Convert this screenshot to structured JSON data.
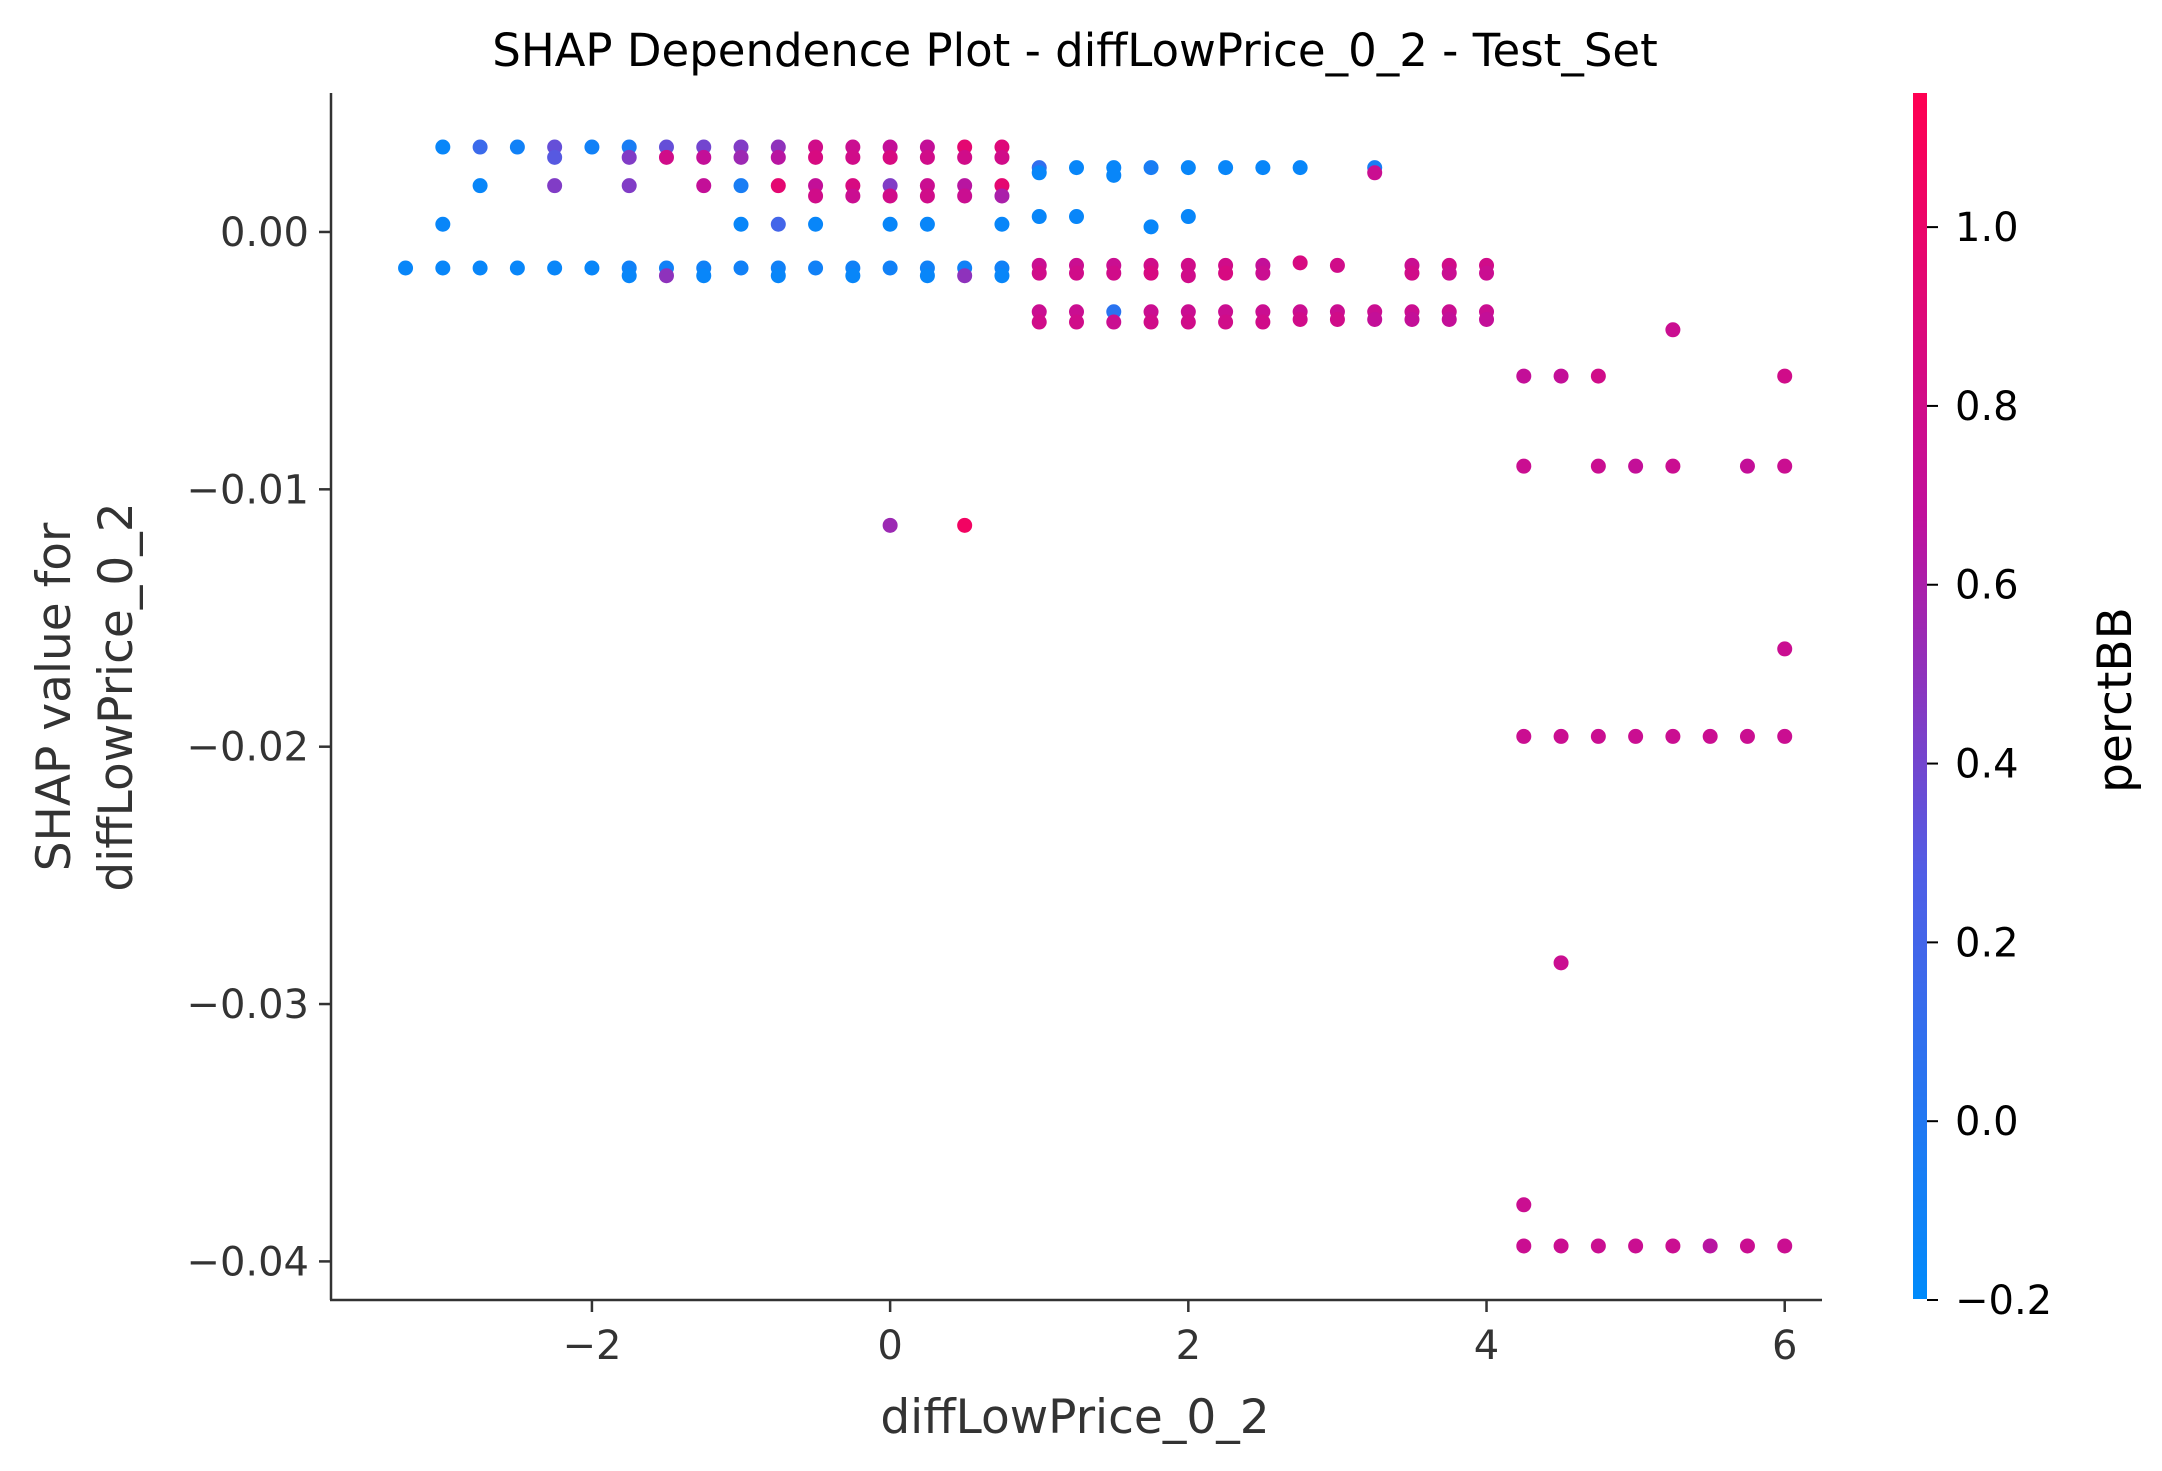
{
  "chart_data": {
    "type": "scatter",
    "title": "SHAP Dependence Plot - diffLowPrice_0_2 - Test_Set",
    "xlabel": "diffLowPrice_0_2",
    "ylabel_lines": [
      "SHAP value for",
      "diffLowPrice_0_2"
    ],
    "xlim": [
      -3.75,
      6.25
    ],
    "ylim": [
      -0.0415,
      0.0054
    ],
    "x_ticks": [
      -2,
      0,
      2,
      4,
      6
    ],
    "x_tick_labels": [
      "−2",
      "0",
      "2",
      "4",
      "6"
    ],
    "y_ticks": [
      0.0,
      -0.01,
      -0.02,
      -0.03,
      -0.04
    ],
    "y_tick_labels": [
      "0.00",
      "−0.01",
      "−0.02",
      "−0.03",
      "−0.04"
    ],
    "colorbar": {
      "label": "perctBB",
      "range": [
        -0.2,
        1.15
      ],
      "ticks": [
        1.0,
        0.8,
        0.6,
        0.4,
        0.2,
        0.0,
        -0.2
      ],
      "tick_labels": [
        "1.0",
        "0.8",
        "0.6",
        "0.4",
        "0.2",
        "0.0",
        "−0.2"
      ],
      "color_low": "#008bfb",
      "color_high": "#ff0052"
    },
    "points": [
      [
        -3.25,
        -0.0014,
        -0.15
      ],
      [
        -3.0,
        0.0033,
        -0.15
      ],
      [
        -3.0,
        0.0003,
        -0.15
      ],
      [
        -3.0,
        -0.0014,
        -0.15
      ],
      [
        -2.75,
        0.0033,
        0.15
      ],
      [
        -2.75,
        0.0018,
        -0.15
      ],
      [
        -2.75,
        -0.0014,
        -0.15
      ],
      [
        -2.5,
        0.0033,
        -0.1
      ],
      [
        -2.5,
        -0.0014,
        -0.15
      ],
      [
        -2.25,
        0.0033,
        0.35
      ],
      [
        -2.25,
        0.0029,
        0.3
      ],
      [
        -2.25,
        0.0018,
        0.45
      ],
      [
        -2.25,
        -0.0014,
        -0.15
      ],
      [
        -2.0,
        0.0033,
        -0.1
      ],
      [
        -2.0,
        -0.0014,
        -0.15
      ],
      [
        -1.75,
        0.0033,
        -0.05
      ],
      [
        -1.75,
        0.0029,
        0.45
      ],
      [
        -1.75,
        0.0018,
        0.45
      ],
      [
        -1.75,
        -0.0014,
        -0.1
      ],
      [
        -1.75,
        -0.0017,
        -0.15
      ],
      [
        -1.5,
        0.0033,
        0.35
      ],
      [
        -1.5,
        0.0029,
        0.8
      ],
      [
        -1.5,
        -0.0014,
        -0.1
      ],
      [
        -1.5,
        -0.0017,
        0.5
      ],
      [
        -1.25,
        0.0033,
        0.4
      ],
      [
        -1.25,
        0.0029,
        0.7
      ],
      [
        -1.25,
        0.0018,
        0.7
      ],
      [
        -1.25,
        -0.0014,
        -0.1
      ],
      [
        -1.25,
        -0.0017,
        -0.15
      ],
      [
        -1.0,
        0.0033,
        0.45
      ],
      [
        -1.0,
        0.0029,
        0.55
      ],
      [
        -1.0,
        0.0018,
        -0.05
      ],
      [
        -1.0,
        0.0003,
        -0.15
      ],
      [
        -1.0,
        -0.0014,
        -0.1
      ],
      [
        -0.75,
        0.0033,
        0.5
      ],
      [
        -0.75,
        0.0029,
        0.65
      ],
      [
        -0.75,
        0.0018,
        0.95
      ],
      [
        -0.75,
        0.0003,
        0.2
      ],
      [
        -0.75,
        -0.0014,
        -0.1
      ],
      [
        -0.75,
        -0.0017,
        -0.15
      ],
      [
        -0.5,
        0.0033,
        0.8
      ],
      [
        -0.5,
        0.0029,
        0.85
      ],
      [
        -0.5,
        0.0018,
        0.7
      ],
      [
        -0.5,
        0.0014,
        0.8
      ],
      [
        -0.5,
        0.0003,
        -0.15
      ],
      [
        -0.5,
        -0.0014,
        -0.1
      ],
      [
        -0.25,
        0.0033,
        0.75
      ],
      [
        -0.25,
        0.0029,
        0.8
      ],
      [
        -0.25,
        0.0018,
        0.85
      ],
      [
        -0.25,
        0.0014,
        0.75
      ],
      [
        -0.25,
        -0.0014,
        -0.1
      ],
      [
        -0.25,
        -0.0017,
        -0.15
      ],
      [
        0.0,
        0.0033,
        0.7
      ],
      [
        0.0,
        0.0029,
        0.85
      ],
      [
        0.0,
        0.0018,
        0.45
      ],
      [
        0.0,
        0.0014,
        0.8
      ],
      [
        0.0,
        0.0003,
        -0.15
      ],
      [
        0.0,
        -0.0014,
        -0.1
      ],
      [
        0.0,
        -0.0114,
        0.55
      ],
      [
        0.25,
        0.0033,
        0.7
      ],
      [
        0.25,
        0.0029,
        0.8
      ],
      [
        0.25,
        0.0018,
        0.75
      ],
      [
        0.25,
        0.0014,
        0.8
      ],
      [
        0.25,
        0.0003,
        -0.15
      ],
      [
        0.25,
        -0.0014,
        -0.1
      ],
      [
        0.25,
        -0.0017,
        -0.15
      ],
      [
        0.5,
        0.0033,
        0.95
      ],
      [
        0.5,
        0.0029,
        0.8
      ],
      [
        0.5,
        0.0018,
        0.65
      ],
      [
        0.5,
        0.0014,
        0.75
      ],
      [
        0.5,
        -0.0014,
        -0.1
      ],
      [
        0.5,
        -0.0017,
        0.5
      ],
      [
        0.5,
        -0.0114,
        1.05
      ],
      [
        0.75,
        0.0033,
        0.9
      ],
      [
        0.75,
        0.0029,
        0.8
      ],
      [
        0.75,
        0.0018,
        0.95
      ],
      [
        0.75,
        0.0014,
        0.6
      ],
      [
        0.75,
        0.0003,
        -0.15
      ],
      [
        0.75,
        -0.0014,
        -0.1
      ],
      [
        0.75,
        -0.0017,
        -0.15
      ],
      [
        1.0,
        0.0025,
        0.1
      ],
      [
        1.0,
        0.0023,
        -0.15
      ],
      [
        1.0,
        0.0006,
        -0.15
      ],
      [
        1.0,
        -0.0013,
        0.75
      ],
      [
        1.0,
        -0.0016,
        0.8
      ],
      [
        1.0,
        -0.0031,
        0.75
      ],
      [
        1.0,
        -0.0035,
        0.8
      ],
      [
        1.25,
        0.0025,
        -0.15
      ],
      [
        1.25,
        0.0006,
        -0.15
      ],
      [
        1.25,
        -0.0013,
        0.75
      ],
      [
        1.25,
        -0.0016,
        0.8
      ],
      [
        1.25,
        -0.0031,
        0.75
      ],
      [
        1.25,
        -0.0035,
        0.8
      ],
      [
        1.5,
        0.0025,
        -0.15
      ],
      [
        1.5,
        0.0022,
        -0.15
      ],
      [
        1.5,
        -0.0013,
        0.75
      ],
      [
        1.5,
        -0.0016,
        0.8
      ],
      [
        1.5,
        -0.0031,
        0.05
      ],
      [
        1.5,
        -0.0035,
        0.75
      ],
      [
        1.75,
        0.0025,
        -0.05
      ],
      [
        1.75,
        0.0002,
        -0.15
      ],
      [
        1.75,
        -0.0013,
        0.8
      ],
      [
        1.75,
        -0.0016,
        0.85
      ],
      [
        1.75,
        -0.0031,
        0.75
      ],
      [
        1.75,
        -0.0035,
        0.8
      ],
      [
        2.0,
        0.0025,
        -0.15
      ],
      [
        2.0,
        0.0006,
        -0.15
      ],
      [
        2.0,
        -0.0013,
        0.8
      ],
      [
        2.0,
        -0.0017,
        0.8
      ],
      [
        2.0,
        -0.0031,
        0.75
      ],
      [
        2.0,
        -0.0035,
        0.8
      ],
      [
        2.25,
        0.0025,
        -0.15
      ],
      [
        2.25,
        -0.0013,
        0.8
      ],
      [
        2.25,
        -0.0016,
        0.85
      ],
      [
        2.25,
        -0.0031,
        0.75
      ],
      [
        2.25,
        -0.0035,
        0.8
      ],
      [
        2.5,
        0.0025,
        -0.15
      ],
      [
        2.5,
        -0.0013,
        0.7
      ],
      [
        2.5,
        -0.0016,
        0.75
      ],
      [
        2.5,
        -0.0031,
        0.75
      ],
      [
        2.5,
        -0.0035,
        0.8
      ],
      [
        2.75,
        0.0025,
        -0.15
      ],
      [
        2.75,
        -0.0012,
        0.85
      ],
      [
        2.75,
        -0.0031,
        0.75
      ],
      [
        2.75,
        -0.0034,
        0.8
      ],
      [
        3.0,
        -0.0013,
        0.8
      ],
      [
        3.0,
        -0.0031,
        0.75
      ],
      [
        3.0,
        -0.0034,
        0.8
      ],
      [
        3.25,
        0.0025,
        -0.05
      ],
      [
        3.25,
        0.0023,
        0.75
      ],
      [
        3.25,
        -0.0031,
        0.75
      ],
      [
        3.25,
        -0.0034,
        0.7
      ],
      [
        3.5,
        -0.0013,
        0.75
      ],
      [
        3.5,
        -0.0016,
        0.8
      ],
      [
        3.5,
        -0.0031,
        0.75
      ],
      [
        3.5,
        -0.0034,
        0.7
      ],
      [
        3.75,
        -0.0013,
        0.8
      ],
      [
        3.75,
        -0.0016,
        0.75
      ],
      [
        3.75,
        -0.0031,
        0.75
      ],
      [
        3.75,
        -0.0034,
        0.7
      ],
      [
        4.0,
        -0.0013,
        0.8
      ],
      [
        4.0,
        -0.0016,
        0.75
      ],
      [
        4.0,
        -0.0031,
        0.75
      ],
      [
        4.0,
        -0.0034,
        0.7
      ],
      [
        4.25,
        -0.0056,
        0.7
      ],
      [
        4.25,
        -0.0091,
        0.75
      ],
      [
        4.25,
        -0.0196,
        0.75
      ],
      [
        4.25,
        -0.0378,
        0.75
      ],
      [
        4.25,
        -0.0394,
        0.75
      ],
      [
        4.5,
        -0.0056,
        0.7
      ],
      [
        4.5,
        -0.0196,
        0.75
      ],
      [
        4.5,
        -0.0284,
        0.75
      ],
      [
        4.5,
        -0.0394,
        0.75
      ],
      [
        4.75,
        -0.0056,
        0.8
      ],
      [
        4.75,
        -0.0091,
        0.75
      ],
      [
        4.75,
        -0.0196,
        0.75
      ],
      [
        4.75,
        -0.0394,
        0.75
      ],
      [
        5.0,
        -0.0091,
        0.7
      ],
      [
        5.0,
        -0.0196,
        0.75
      ],
      [
        5.0,
        -0.0394,
        0.75
      ],
      [
        5.25,
        -0.0038,
        0.75
      ],
      [
        5.25,
        -0.0091,
        0.75
      ],
      [
        5.25,
        -0.0196,
        0.75
      ],
      [
        5.25,
        -0.0394,
        0.75
      ],
      [
        5.5,
        -0.0196,
        0.75
      ],
      [
        5.5,
        -0.0394,
        0.65
      ],
      [
        5.75,
        -0.0091,
        0.7
      ],
      [
        5.75,
        -0.0196,
        0.75
      ],
      [
        5.75,
        -0.0394,
        0.75
      ],
      [
        6.0,
        -0.0056,
        0.8
      ],
      [
        6.0,
        -0.0091,
        0.75
      ],
      [
        6.0,
        -0.0162,
        0.75
      ],
      [
        6.0,
        -0.0196,
        0.75
      ],
      [
        6.0,
        -0.0394,
        0.75
      ]
    ]
  }
}
